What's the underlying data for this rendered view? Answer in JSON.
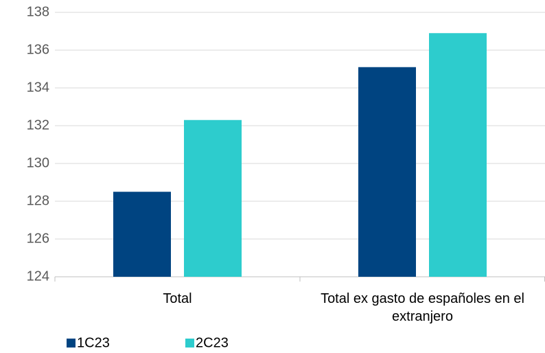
{
  "chart_data": {
    "type": "bar",
    "categories": [
      "Total",
      "Total ex gasto de españoles en el extranjero"
    ],
    "series": [
      {
        "name": "1C23",
        "color": "#004481",
        "values": [
          128.5,
          135.1
        ]
      },
      {
        "name": "2C23",
        "color": "#2dcccd",
        "values": [
          132.3,
          136.9
        ]
      }
    ],
    "ylim": [
      124,
      138
    ],
    "yticks": [
      124,
      126,
      128,
      130,
      132,
      134,
      136,
      138
    ],
    "grid": true,
    "legend": "bottom-left"
  }
}
